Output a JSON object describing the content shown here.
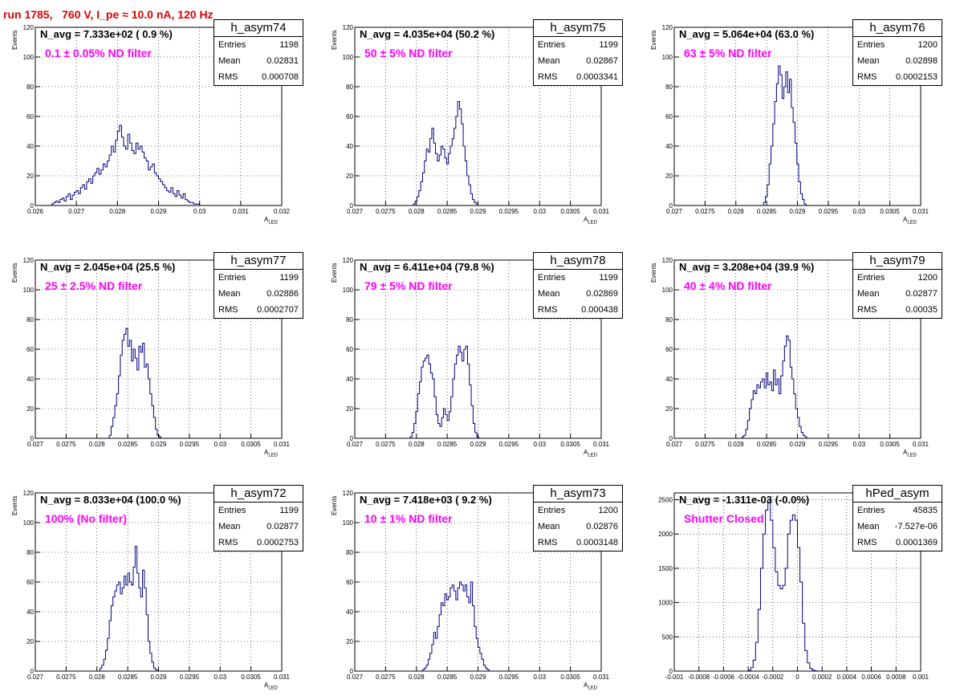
{
  "title": "run 1785,   760 V, I_pe ≈ 10.0 nA, 120 Hz",
  "colors": {
    "title": "#e00000",
    "hist": "#00007f",
    "filter_label": "#ff00ff",
    "grid": "#000000"
  },
  "chart_data": [
    {
      "type": "histogram",
      "name": "h_asym74",
      "navg": "N_avg = 7.333e+02 ( 0.9 %)",
      "filter": "0.1 ± 0.05% ND filter",
      "stats": {
        "entries": "1198",
        "mean": "0.02831",
        "rms": "0.000708"
      },
      "xlabel": "A",
      "xlabel_sub": "LED",
      "ylabel": "Events",
      "xlim": [
        0.026,
        0.032
      ],
      "ylim": [
        0,
        120
      ],
      "xticks": [
        "0.026",
        "0.027",
        "0.028",
        "0.029",
        "0.03",
        "0.031",
        "0.032"
      ],
      "yticks": [
        "0",
        "20",
        "40",
        "60",
        "80",
        "100",
        "120"
      ],
      "x_start": 0.0264,
      "bin_width": 5e-05,
      "counts": [
        1,
        2,
        3,
        2,
        4,
        5,
        3,
        6,
        8,
        4,
        7,
        9,
        10,
        8,
        12,
        14,
        11,
        16,
        18,
        15,
        20,
        22,
        25,
        21,
        24,
        28,
        26,
        30,
        34,
        40,
        36,
        44,
        50,
        54,
        46,
        40,
        38,
        48,
        42,
        37,
        35,
        42,
        38,
        40,
        36,
        32,
        30,
        24,
        26,
        28,
        22,
        20,
        18,
        16,
        14,
        12,
        10,
        9,
        12,
        8,
        6,
        10,
        7,
        5,
        8,
        4,
        3,
        2,
        2,
        1,
        1,
        1
      ]
    },
    {
      "type": "histogram",
      "name": "h_asym75",
      "navg": "N_avg = 4.035e+04 (50.2 %)",
      "filter": "50 ± 5% ND filter",
      "stats": {
        "entries": "1199",
        "mean": "0.02867",
        "rms": "0.0003341"
      },
      "xlabel": "A",
      "xlabel_sub": "LED",
      "ylabel": "Events",
      "xlim": [
        0.027,
        0.031
      ],
      "ylim": [
        0,
        120
      ],
      "xticks": [
        "0.027",
        "0.0275",
        "0.028",
        "0.0285",
        "0.029",
        "0.0295",
        "0.03",
        "0.0305",
        "0.031"
      ],
      "yticks": [
        "0",
        "20",
        "40",
        "60",
        "80",
        "100",
        "120"
      ],
      "x_start": 0.02795,
      "bin_width": 3e-05,
      "counts": [
        1,
        3,
        6,
        10,
        16,
        22,
        30,
        38,
        36,
        45,
        52,
        42,
        35,
        30,
        34,
        40,
        38,
        32,
        28,
        35,
        40,
        45,
        52,
        60,
        70,
        65,
        55,
        40,
        30,
        20,
        14,
        8,
        4,
        2,
        1
      ]
    },
    {
      "type": "histogram",
      "name": "h_asym76",
      "navg": "N_avg = 5.064e+04 (63.0 %)",
      "filter": "63 ± 5% ND filter",
      "stats": {
        "entries": "1200",
        "mean": "0.02898",
        "rms": "0.0002153"
      },
      "xlabel": "A",
      "xlabel_sub": "LED",
      "ylabel": "Events",
      "xlim": [
        0.027,
        0.031
      ],
      "ylim": [
        0,
        120
      ],
      "xticks": [
        "0.027",
        "0.0275",
        "0.028",
        "0.0285",
        "0.029",
        "0.0295",
        "0.03",
        "0.0305",
        "0.031"
      ],
      "yticks": [
        "0",
        "20",
        "40",
        "60",
        "80",
        "100",
        "120"
      ],
      "x_start": 0.02845,
      "bin_width": 3e-05,
      "counts": [
        2,
        6,
        14,
        28,
        40,
        55,
        70,
        82,
        94,
        88,
        72,
        80,
        90,
        76,
        85,
        66,
        56,
        42,
        28,
        16,
        8,
        4,
        1
      ]
    },
    {
      "type": "histogram",
      "name": "h_asym77",
      "navg": "N_avg = 2.045e+04 (25.5 %)",
      "filter": "25 ± 2.5% ND filter",
      "stats": {
        "entries": "1199",
        "mean": "0.02886",
        "rms": "0.0002707"
      },
      "xlabel": "A",
      "xlabel_sub": "LED",
      "ylabel": "Events",
      "xlim": [
        0.027,
        0.031
      ],
      "ylim": [
        0,
        120
      ],
      "xticks": [
        "0.027",
        "0.0275",
        "0.028",
        "0.0285",
        "0.029",
        "0.0295",
        "0.03",
        "0.0305",
        "0.031"
      ],
      "yticks": [
        "0",
        "20",
        "40",
        "60",
        "80",
        "100",
        "120"
      ],
      "x_start": 0.0282,
      "bin_width": 3e-05,
      "counts": [
        2,
        8,
        14,
        22,
        30,
        42,
        56,
        66,
        70,
        74,
        62,
        66,
        52,
        60,
        54,
        46,
        62,
        58,
        64,
        48,
        50,
        40,
        30,
        22,
        14,
        6,
        2,
        1
      ]
    },
    {
      "type": "histogram",
      "name": "h_asym78",
      "navg": "N_avg = 6.411e+04 (79.8 %)",
      "filter": "79 ± 5% ND filter",
      "stats": {
        "entries": "1199",
        "mean": "0.02869",
        "rms": "0.000438"
      },
      "xlabel": "A",
      "xlabel_sub": "LED",
      "ylabel": "Events",
      "xlim": [
        0.027,
        0.031
      ],
      "ylim": [
        0,
        120
      ],
      "xticks": [
        "0.027",
        "0.0275",
        "0.028",
        "0.0285",
        "0.029",
        "0.0295",
        "0.03",
        "0.0305",
        "0.031"
      ],
      "yticks": [
        "0",
        "20",
        "40",
        "60",
        "80",
        "100",
        "120"
      ],
      "x_start": 0.0279,
      "bin_width": 3e-05,
      "counts": [
        1,
        4,
        10,
        18,
        30,
        38,
        48,
        52,
        54,
        56,
        50,
        44,
        40,
        28,
        16,
        10,
        8,
        14,
        20,
        16,
        12,
        18,
        28,
        40,
        50,
        56,
        62,
        58,
        52,
        60,
        62,
        50,
        36,
        22,
        10,
        4,
        1
      ]
    },
    {
      "type": "histogram",
      "name": "h_asym79",
      "navg": "N_avg = 3.208e+04 (39.9 %)",
      "filter": "40 ± 4% ND filter",
      "stats": {
        "entries": "1200",
        "mean": "0.02877",
        "rms": "0.00035"
      },
      "xlabel": "A",
      "xlabel_sub": "LED",
      "ylabel": "Events",
      "xlim": [
        0.027,
        0.031
      ],
      "ylim": [
        0,
        120
      ],
      "xticks": [
        "0.027",
        "0.0275",
        "0.028",
        "0.0285",
        "0.029",
        "0.0295",
        "0.03",
        "0.0305",
        "0.031"
      ],
      "yticks": [
        "0",
        "20",
        "40",
        "60",
        "80",
        "100",
        "120"
      ],
      "x_start": 0.0281,
      "bin_width": 3e-05,
      "counts": [
        1,
        2,
        6,
        12,
        20,
        26,
        32,
        30,
        36,
        34,
        38,
        40,
        34,
        44,
        36,
        38,
        32,
        46,
        36,
        40,
        30,
        42,
        52,
        62,
        69,
        66,
        48,
        40,
        30,
        20,
        14,
        8,
        4,
        2,
        1
      ]
    },
    {
      "type": "histogram",
      "name": "h_asym72",
      "navg": "N_avg = 8.033e+04 (100.0 %)",
      "filter": "100% (No filter)",
      "stats": {
        "entries": "1199",
        "mean": "0.02877",
        "rms": "0.0002753"
      },
      "xlabel": "A",
      "xlabel_sub": "LED",
      "ylabel": "Events",
      "xlim": [
        0.027,
        0.031
      ],
      "ylim": [
        0,
        120
      ],
      "xticks": [
        "0.027",
        "0.0275",
        "0.028",
        "0.0285",
        "0.029",
        "0.0295",
        "0.03",
        "0.0305",
        "0.031"
      ],
      "yticks": [
        "0",
        "20",
        "40",
        "60",
        "80",
        "100",
        "120"
      ],
      "x_start": 0.02805,
      "bin_width": 3e-05,
      "counts": [
        2,
        4,
        8,
        14,
        22,
        34,
        44,
        50,
        54,
        58,
        60,
        52,
        56,
        64,
        58,
        66,
        60,
        58,
        70,
        84,
        66,
        56,
        50,
        68,
        56,
        38,
        20,
        12,
        6,
        2,
        1
      ]
    },
    {
      "type": "histogram",
      "name": "h_asym73",
      "navg": "N_avg = 7.418e+03 ( 9.2 %)",
      "filter": "10 ± 1% ND filter",
      "stats": {
        "entries": "1200",
        "mean": "0.02876",
        "rms": "0.0003148"
      },
      "xlabel": "A",
      "xlabel_sub": "LED",
      "ylabel": "Events",
      "xlim": [
        0.027,
        0.031
      ],
      "ylim": [
        0,
        120
      ],
      "xticks": [
        "0.027",
        "0.0275",
        "0.028",
        "0.0285",
        "0.029",
        "0.0295",
        "0.03",
        "0.0305",
        "0.031"
      ],
      "yticks": [
        "0",
        "20",
        "40",
        "60",
        "80",
        "100",
        "120"
      ],
      "x_start": 0.0281,
      "bin_width": 3e-05,
      "counts": [
        1,
        2,
        4,
        8,
        12,
        18,
        26,
        22,
        30,
        38,
        46,
        44,
        52,
        48,
        50,
        56,
        58,
        54,
        48,
        56,
        60,
        58,
        54,
        58,
        50,
        46,
        60,
        44,
        30,
        22,
        16,
        12,
        8,
        4,
        2,
        1
      ]
    },
    {
      "type": "histogram",
      "name": "hPed_asym",
      "navg": "N_avg = -1.311e-03 (-0.0%)",
      "filter": "Shutter Closed",
      "stats": {
        "entries": "45835",
        "mean": "-7.527e-06",
        "rms": "0.0001369"
      },
      "xlabel": "",
      "xlabel_sub": "",
      "ylabel": "",
      "xlim": [
        -0.001,
        0.001
      ],
      "ylim": [
        0,
        2600
      ],
      "xticks": [
        "-0.001",
        "-0.0008",
        "-0.0006",
        "-0.0004",
        "-0.0002",
        "0",
        "0.0002",
        "0.0004",
        "0.0006",
        "0.0008",
        "0.001"
      ],
      "yticks": [
        "0",
        "500",
        "1000",
        "1500",
        "2000",
        "2500"
      ],
      "x_start": -0.0004,
      "bin_width": 2e-05,
      "counts": [
        10,
        50,
        160,
        420,
        900,
        1500,
        2000,
        2350,
        2500,
        2200,
        1800,
        1450,
        1250,
        1200,
        1250,
        1500,
        2000,
        2200,
        2280,
        2200,
        1800,
        1300,
        700,
        300,
        120,
        40,
        15,
        5
      ]
    }
  ]
}
